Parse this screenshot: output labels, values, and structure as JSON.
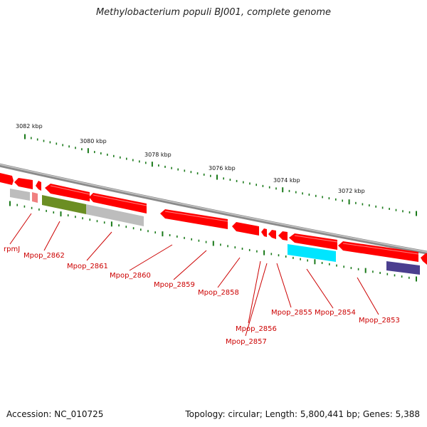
{
  "title": "Methylobacterium populi BJ001, complete genome",
  "footer": {
    "accession": "Accession: NC_010725",
    "summary": "Topology: circular; Length: 5,800,441 bp; Genes: 5,388"
  },
  "colors": {
    "backbone": "#8a8a8a",
    "gene_forward": "#ff0000",
    "tick": "#1a7a1a",
    "label": "#cc0000",
    "grey_feature": "#bdbdbd",
    "olive_feature": "#6b8e23",
    "cyan_feature": "#00e5ff",
    "navy_feature": "#4b3f8f"
  },
  "scale_labels": [
    "3082 kbp",
    "3080 kbp",
    "3078 kbp",
    "3076 kbp",
    "3074 kbp",
    "3072 kbp"
  ],
  "gene_labels": [
    "rpmJ",
    "Mpop_2862",
    "Mpop_2861",
    "Mpop_2860",
    "Mpop_2859",
    "Mpop_2858",
    "Mpop_2856",
    "Mpop_2857",
    "Mpop_2855",
    "Mpop_2854",
    "Mpop_2853"
  ]
}
